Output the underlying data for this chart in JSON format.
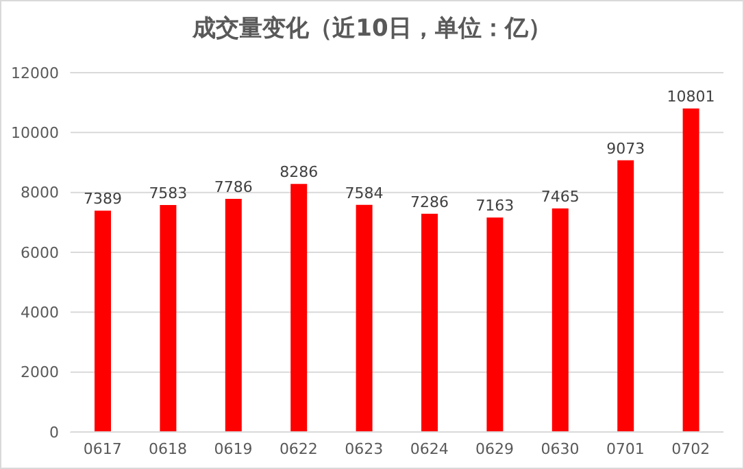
{
  "chart_data": {
    "type": "bar",
    "title": "成交量变化（近10日，单位：亿）",
    "categories": [
      "0617",
      "0618",
      "0619",
      "0622",
      "0623",
      "0624",
      "0629",
      "0630",
      "0701",
      "0702"
    ],
    "values": [
      7389,
      7583,
      7786,
      8286,
      7584,
      7286,
      7163,
      7465,
      9073,
      10801
    ],
    "color": "#ff0000",
    "ylim": [
      0,
      12000
    ],
    "yticks": [
      0,
      2000,
      4000,
      6000,
      8000,
      10000,
      12000
    ],
    "grid": "y",
    "data_labels": true
  }
}
